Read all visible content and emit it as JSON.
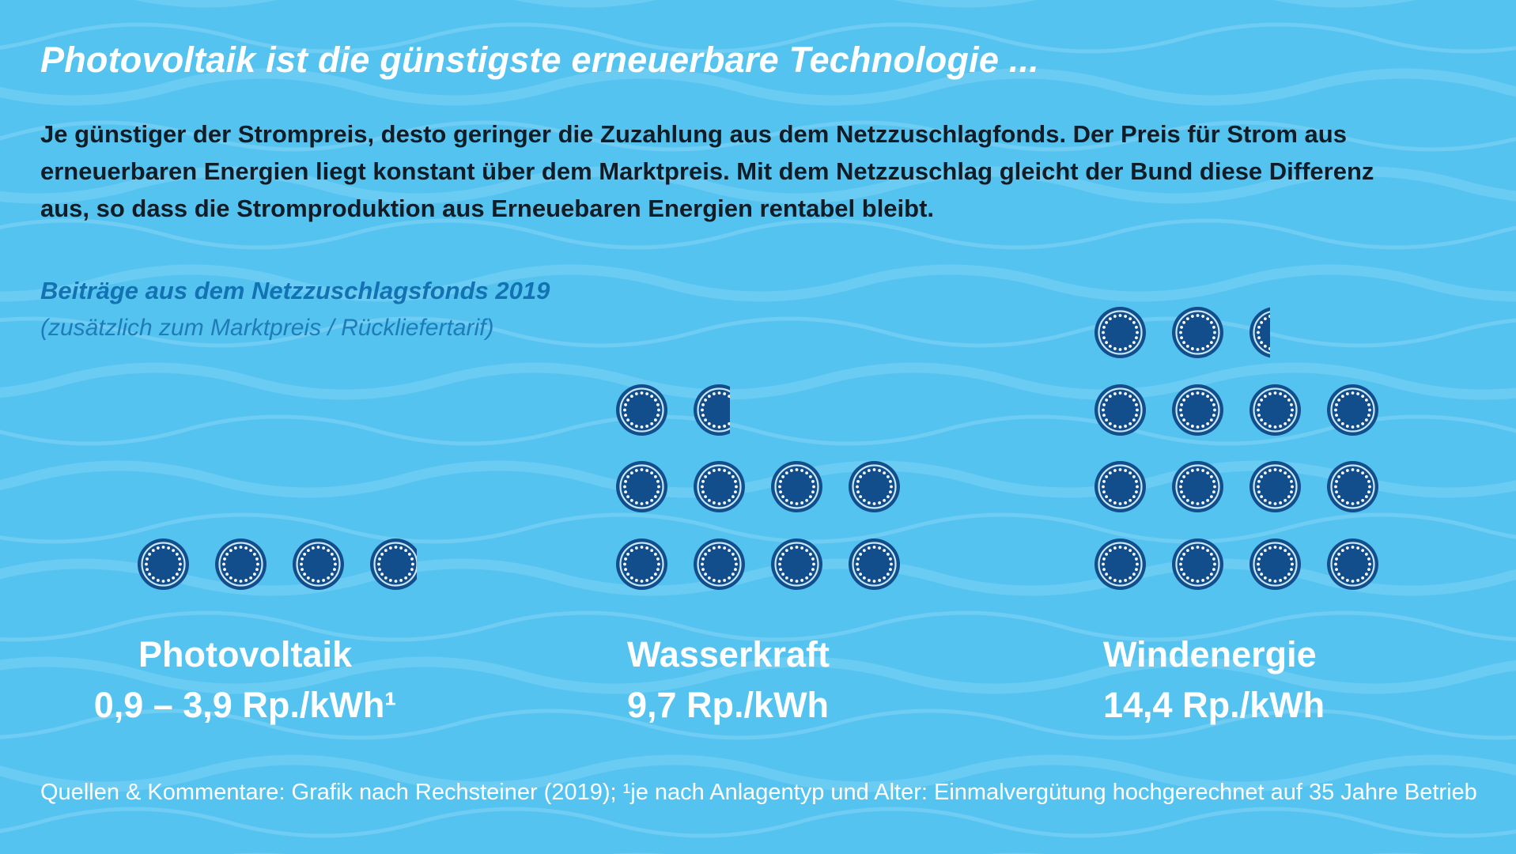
{
  "header": {
    "title": "Photovoltaik ist die günstigste erneuerbare Technologie ...",
    "intro": "Je günstiger der Strompreis, desto geringer die Zuzahlung aus dem Netzzuschlagfonds. Der Preis für Strom aus\nerneuerbaren Energien liegt konstant über dem Marktpreis. Mit dem Netzzuschlag gleicht der Bund diese Differenz\naus, so dass die Stromproduktion aus Erneuebaren Energien rentabel bleibt."
  },
  "chart_data": {
    "type": "pictogram",
    "title": "Beiträge aus dem Netzzuschlagsfonds 2019",
    "subtitle": "(zusätzlich zum Marktpreis / Rückliefertarif)",
    "unit": "Rp./kWh",
    "coin_unit": 1,
    "legend_position": "none",
    "groups": [
      {
        "name": "Photovoltaik",
        "value_label": "0,9 – 3,9 Rp./kWh¹",
        "value_min": 0.9,
        "value_max": 3.9,
        "coins_shown": 3.9,
        "rows": [
          [
            1,
            1,
            1,
            0.9
          ]
        ]
      },
      {
        "name": "Wasserkraft",
        "value_label": "9,7 Rp./kWh",
        "value": 9.7,
        "coins_shown": 9.7,
        "rows": [
          [
            1,
            0.7
          ],
          [
            1,
            1,
            1,
            1
          ],
          [
            1,
            1,
            1,
            1
          ]
        ]
      },
      {
        "name": "Windenergie",
        "value_label": "14,4 Rp./kWh",
        "value": 14.4,
        "coins_shown": 14.4,
        "rows": [
          [
            1,
            1,
            0.4
          ],
          [
            1,
            1,
            1,
            1
          ],
          [
            1,
            1,
            1,
            1
          ],
          [
            1,
            1,
            1,
            1
          ]
        ]
      }
    ]
  },
  "footer": {
    "text": "Quellen & Kommentare: Grafik nach Rechsteiner (2019); ¹je nach Anlagentyp und Alter: Einmalvergütung hochgerechnet auf 35 Jahre Betrieb"
  },
  "colors": {
    "background": "#55c3f0",
    "wave": "#85d4f6",
    "coin": "#134e8c",
    "coin_ring": "#c7e7f9",
    "coin_dots": "#ffffff",
    "heading_blue": "#1272b2",
    "subnote_blue": "#1f7cb8",
    "body_text": "#101c26",
    "label_text": "#ffffff"
  }
}
